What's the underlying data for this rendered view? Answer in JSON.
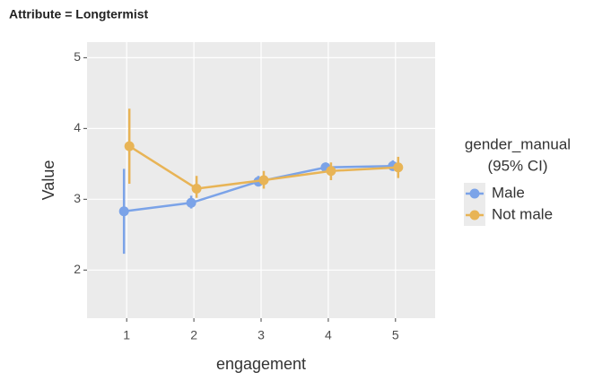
{
  "chart_data": {
    "type": "pointrange",
    "title": "Attribute = Longtermist",
    "x_label": "engagement",
    "y_label": "Value",
    "legend_title": "gender_manual",
    "legend_subtitle": "(95% CI)",
    "x": [
      1,
      2,
      3,
      4,
      5
    ],
    "series": [
      {
        "name": "Male",
        "color": "#7ba3e8",
        "values": [
          2.83,
          2.95,
          3.25,
          3.45,
          3.47
        ],
        "lower": [
          2.23,
          2.87,
          3.18,
          3.4,
          3.4
        ],
        "upper": [
          3.43,
          3.05,
          3.33,
          3.52,
          3.55
        ]
      },
      {
        "name": "Not male",
        "color": "#e8b456",
        "values": [
          3.75,
          3.15,
          3.27,
          3.4,
          3.45
        ],
        "lower": [
          3.22,
          3.02,
          3.15,
          3.27,
          3.3
        ],
        "upper": [
          4.28,
          3.33,
          3.4,
          3.52,
          3.6
        ]
      }
    ],
    "xlim": [
      0.41,
      5.59
    ],
    "xticks": [
      1,
      2,
      3,
      4,
      5
    ],
    "ylim": [
      1.32,
      5.22
    ],
    "yticks": [
      2,
      3,
      4,
      5
    ],
    "grid": true
  }
}
